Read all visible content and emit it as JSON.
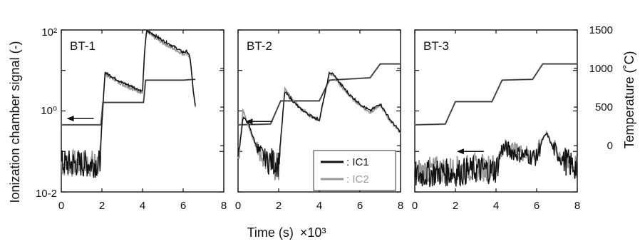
{
  "chart_data": {
    "type": "line",
    "xlabel": "Time (s)",
    "x_multiplier": "×10³",
    "ylabel_left": "Ionization chamber signal (-)",
    "ylabel_right": "Temperature (˚C)",
    "xlim": [
      0,
      8
    ],
    "x_ticks": [
      "0",
      "2",
      "4",
      "6",
      "8"
    ],
    "left_axis": {
      "scale": "log",
      "ylim": [
        0.01,
        100
      ],
      "tick_labels": [
        "10-2",
        "10⁰",
        "10²"
      ]
    },
    "right_axis": {
      "scale": "linear",
      "ylim": [
        -600,
        1500
      ],
      "ticks": [
        0,
        500,
        1000,
        1500
      ],
      "tick_labels": [
        "0",
        "500",
        "1000",
        "1500"
      ]
    },
    "legend": [
      {
        "name": ": IC1",
        "color": "#111111"
      },
      {
        "name": ": IC2",
        "color": "#999999"
      }
    ],
    "panels": [
      {
        "label": "BT-1",
        "temperature": {
          "x": [
            0,
            1.95,
            2.05,
            4.05,
            4.15,
            6.0,
            6.6
          ],
          "y": [
            270,
            270,
            560,
            560,
            850,
            850,
            860
          ]
        },
        "ic_signal": {
          "x": [
            0,
            1.9,
            2.0,
            2.15,
            2.5,
            3.0,
            3.5,
            4.0,
            4.1,
            4.2,
            4.5,
            5.0,
            5.5,
            6.0,
            6.2,
            6.35,
            6.5,
            6.6
          ],
          "IC1": [
            0.05,
            0.05,
            0.5,
            9.0,
            7.0,
            5.0,
            4.0,
            3.0,
            30,
            95,
            80,
            55,
            40,
            28,
            30,
            20,
            3.0,
            1.3
          ],
          "IC2": [
            0.05,
            0.05,
            0.5,
            8.0,
            6.5,
            4.5,
            3.5,
            2.8,
            28,
            90,
            70,
            48,
            35,
            25,
            28,
            18,
            3.0,
            1.3
          ]
        },
        "arrow_level": 0.65
      },
      {
        "label": "BT-2",
        "temperature": {
          "x": [
            0,
            1.6,
            2.1,
            4.0,
            4.5,
            6.5,
            7.0,
            8.0
          ],
          "y": [
            270,
            280,
            580,
            580,
            850,
            880,
            1060,
            1060
          ]
        },
        "ic_signal": {
          "x": [
            0,
            0.25,
            0.5,
            1.0,
            1.5,
            2.0,
            2.3,
            2.6,
            3.0,
            3.5,
            4.0,
            4.5,
            4.7,
            5.0,
            5.5,
            6.0,
            6.5,
            7.0,
            7.5,
            8.0
          ],
          "IC1": [
            0.06,
            0.7,
            0.5,
            0.1,
            0.06,
            0.05,
            3.0,
            2.0,
            1.2,
            0.8,
            0.6,
            9.0,
            8.0,
            5.0,
            2.5,
            1.5,
            1.0,
            1.5,
            0.6,
            0.3
          ],
          "IC2": [
            0.05,
            1.1,
            0.45,
            0.09,
            0.05,
            0.04,
            3.5,
            2.2,
            1.3,
            0.8,
            0.55,
            8.5,
            7.5,
            4.5,
            2.3,
            1.4,
            0.9,
            1.4,
            0.55,
            0.3
          ]
        },
        "arrow_level": 0.55
      },
      {
        "label": "BT-3",
        "temperature": {
          "x": [
            0,
            1.5,
            2.0,
            3.8,
            4.3,
            5.8,
            6.3,
            8.0
          ],
          "y": [
            270,
            280,
            570,
            570,
            850,
            860,
            1060,
            1060
          ]
        },
        "ic_signal": {
          "x": [
            0,
            1.0,
            2.0,
            3.0,
            4.0,
            4.3,
            4.6,
            5.0,
            5.5,
            6.0,
            6.3,
            6.5,
            6.8,
            7.2,
            7.6,
            8.0
          ],
          "IC1": [
            0.025,
            0.03,
            0.03,
            0.035,
            0.035,
            0.12,
            0.11,
            0.09,
            0.08,
            0.07,
            0.2,
            0.28,
            0.12,
            0.07,
            0.05,
            0.04
          ],
          "IC2": [
            0.03,
            0.035,
            0.035,
            0.04,
            0.04,
            0.13,
            0.12,
            0.1,
            0.09,
            0.08,
            0.22,
            0.3,
            0.13,
            0.08,
            0.05,
            0.04
          ]
        },
        "arrow_level": 0.1
      }
    ]
  }
}
